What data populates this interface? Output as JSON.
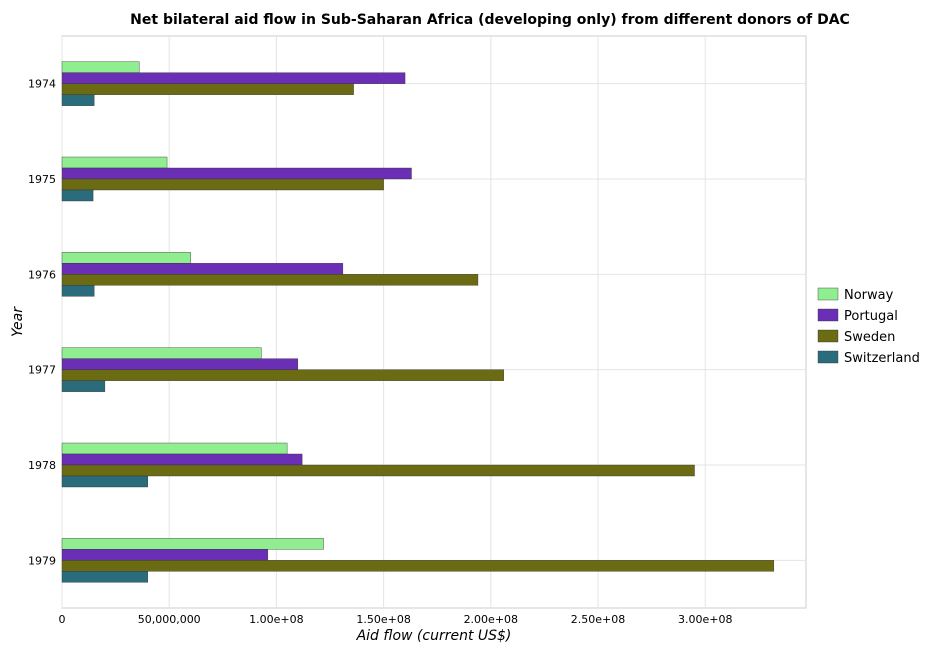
{
  "chart_data": {
    "type": "bar",
    "orientation": "horizontal",
    "title": "Net bilateral aid flow in Sub-Saharan Africa (developing only) from different donors of DAC",
    "xlabel": "Aid flow (current US$)",
    "ylabel": "Year",
    "categories": [
      "1974",
      "1975",
      "1976",
      "1977",
      "1978",
      "1979"
    ],
    "xlim": [
      0,
      347000000
    ],
    "xticks": [
      0,
      50000000,
      100000000,
      150000000,
      200000000,
      250000000,
      300000000
    ],
    "xtick_labels": [
      "0",
      "50000000",
      "100000000",
      "150000000",
      "200000000",
      "250000000",
      "300000000"
    ],
    "xtick_labels_display": [
      "0",
      "50,000,000",
      "1.00e+08",
      "1.50e+08",
      "2.00e+08",
      "2.50e+08",
      "3.00e+08"
    ],
    "grid": true,
    "legend_position": "right",
    "series": [
      {
        "name": "Norway",
        "color": "#90ee90",
        "values": [
          36000000,
          49000000,
          60000000,
          93000000,
          105000000,
          122000000
        ]
      },
      {
        "name": "Portugal",
        "color": "#6a2fb5",
        "values": [
          160000000,
          163000000,
          131000000,
          110000000,
          112000000,
          96000000
        ]
      },
      {
        "name": "Sweden",
        "color": "#6b6b14",
        "values": [
          136000000,
          150000000,
          194000000,
          206000000,
          295000000,
          332000000
        ]
      },
      {
        "name": "Switzerland",
        "color": "#2a6b7c",
        "values": [
          15000000,
          14500000,
          15000000,
          20000000,
          40000000,
          40000000
        ]
      }
    ]
  }
}
